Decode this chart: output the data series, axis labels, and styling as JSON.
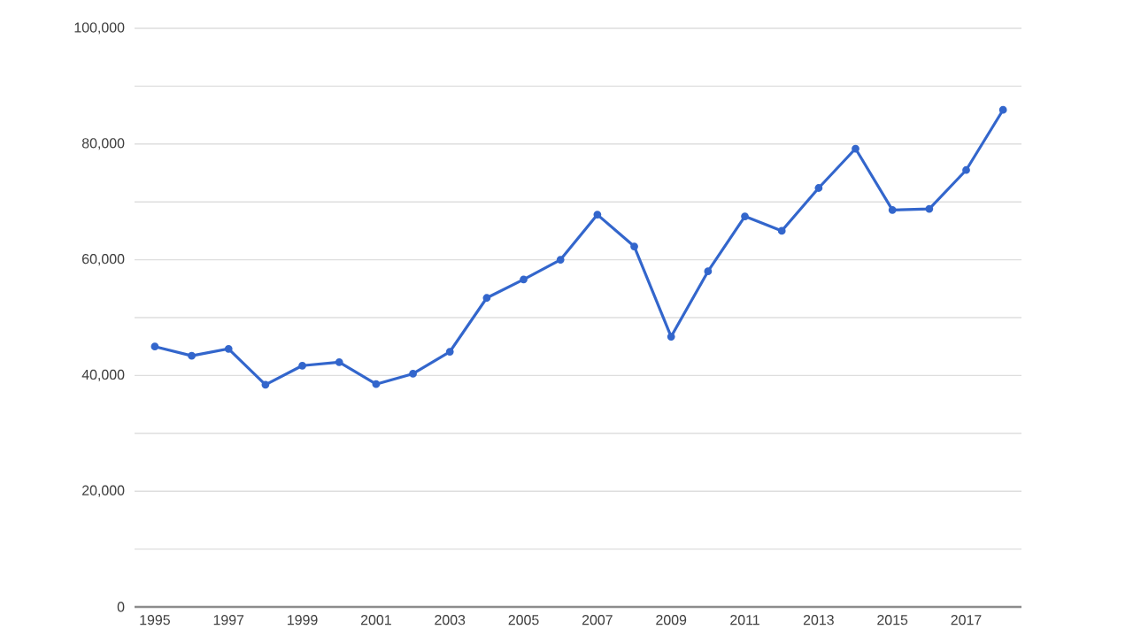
{
  "chart_data": {
    "type": "line",
    "x": [
      1995,
      1996,
      1997,
      1998,
      1999,
      2000,
      2001,
      2002,
      2003,
      2004,
      2005,
      2006,
      2007,
      2008,
      2009,
      2010,
      2011,
      2012,
      2013,
      2014,
      2015,
      2016,
      2017,
      2018
    ],
    "values": [
      45000,
      43400,
      44600,
      38400,
      41700,
      42300,
      38500,
      40300,
      44100,
      53400,
      56600,
      60000,
      67800,
      62300,
      46700,
      58000,
      67500,
      65000,
      72400,
      79200,
      68600,
      68800,
      75500,
      85900
    ],
    "color": "#3366cc",
    "xlim": [
      1994.45,
      2018.5
    ],
    "xticks": [
      1995,
      1997,
      1999,
      2001,
      2003,
      2005,
      2007,
      2009,
      2011,
      2013,
      2015,
      2017
    ],
    "ylim": [
      0,
      100000
    ],
    "yticks": [
      0,
      {
        "value": 10000,
        "label": null
      },
      {
        "value": 20000,
        "label": "20,000"
      },
      {
        "value": 30000,
        "label": null
      },
      {
        "value": 40000,
        "label": "40,000"
      },
      {
        "value": 50000,
        "label": null
      },
      {
        "value": 60000,
        "label": "60,000"
      },
      {
        "value": 70000,
        "label": null
      },
      {
        "value": 80000,
        "label": "80,000"
      },
      {
        "value": 90000,
        "label": null
      },
      {
        "value": 100000,
        "label": "100,000"
      }
    ],
    "grid": "y",
    "marker": "circle",
    "line_style": "solid"
  }
}
